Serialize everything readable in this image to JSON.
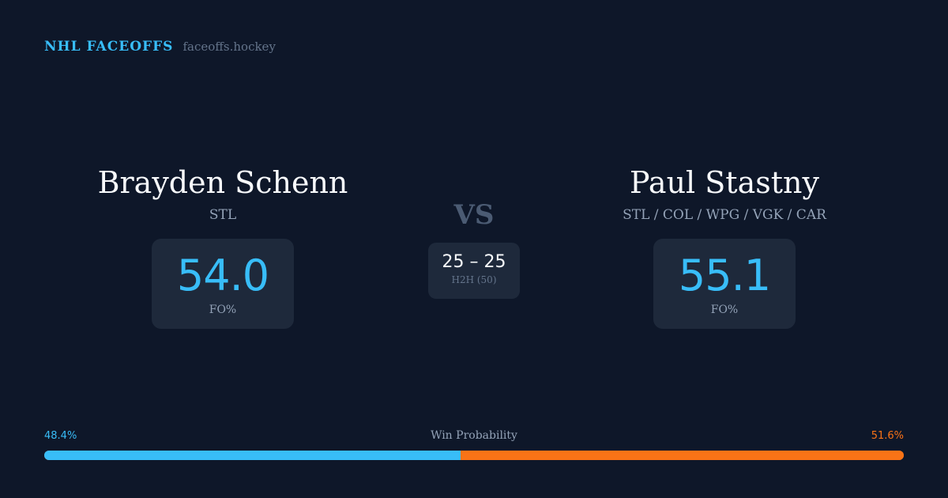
{
  "brand": {
    "title": "NHL FACEOFFS",
    "url": "faceoffs.hockey"
  },
  "player_a": {
    "name": "Brayden Schenn",
    "teams": "STL",
    "fo_pct": "54.0",
    "fo_label": "FO%"
  },
  "player_b": {
    "name": "Paul Stastny",
    "teams": "STL / COL / WPG / VGK / CAR",
    "fo_pct": "55.1",
    "fo_label": "FO%"
  },
  "vs_label": "VS",
  "h2h": {
    "score": "25 – 25",
    "label": "H2H (50)"
  },
  "win_probability": {
    "title": "Win Probability",
    "a_label": "48.4%",
    "b_label": "51.6%",
    "a_value": 48.4,
    "b_value": 51.6
  },
  "colors": {
    "player_a": "#38bdf8",
    "player_b": "#f97316",
    "background": "#0e1729",
    "card": "#1e293b"
  }
}
